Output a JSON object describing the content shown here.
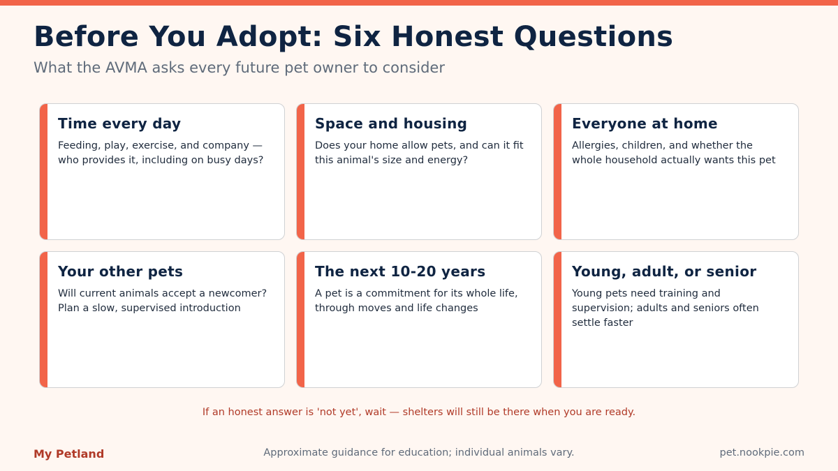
{
  "header": {
    "title": "Before You Adopt: Six Honest Questions",
    "subtitle": "What the AVMA asks every future pet owner to consider"
  },
  "cards": [
    {
      "title": "Time every day",
      "body": "Feeding, play, exercise, and company — who provides it, including on busy days?"
    },
    {
      "title": "Space and housing",
      "body": "Does your home allow pets, and can it fit this animal's size and energy?"
    },
    {
      "title": "Everyone at home",
      "body": "Allergies, children, and whether the whole household actually wants this pet"
    },
    {
      "title": "Your other pets",
      "body": "Will current animals accept a newcomer? Plan a slow, supervised introduction"
    },
    {
      "title": "The next 10-20 years",
      "body": "A pet is a commitment for its whole life, through moves and life changes"
    },
    {
      "title": "Young, adult, or senior",
      "body": "Young pets need training and supervision; adults and seniors often settle faster"
    }
  ],
  "note": "If an honest answer is 'not yet', wait — shelters will still be there when you are ready.",
  "footer": {
    "brand": "My Petland",
    "disclaimer": "Approximate guidance for education; individual animals vary.",
    "url": "pet.nookpie.com"
  },
  "colors": {
    "accent": "#f26449",
    "title": "#0f2442",
    "note": "#b03a28",
    "background": "#fff7f2"
  }
}
